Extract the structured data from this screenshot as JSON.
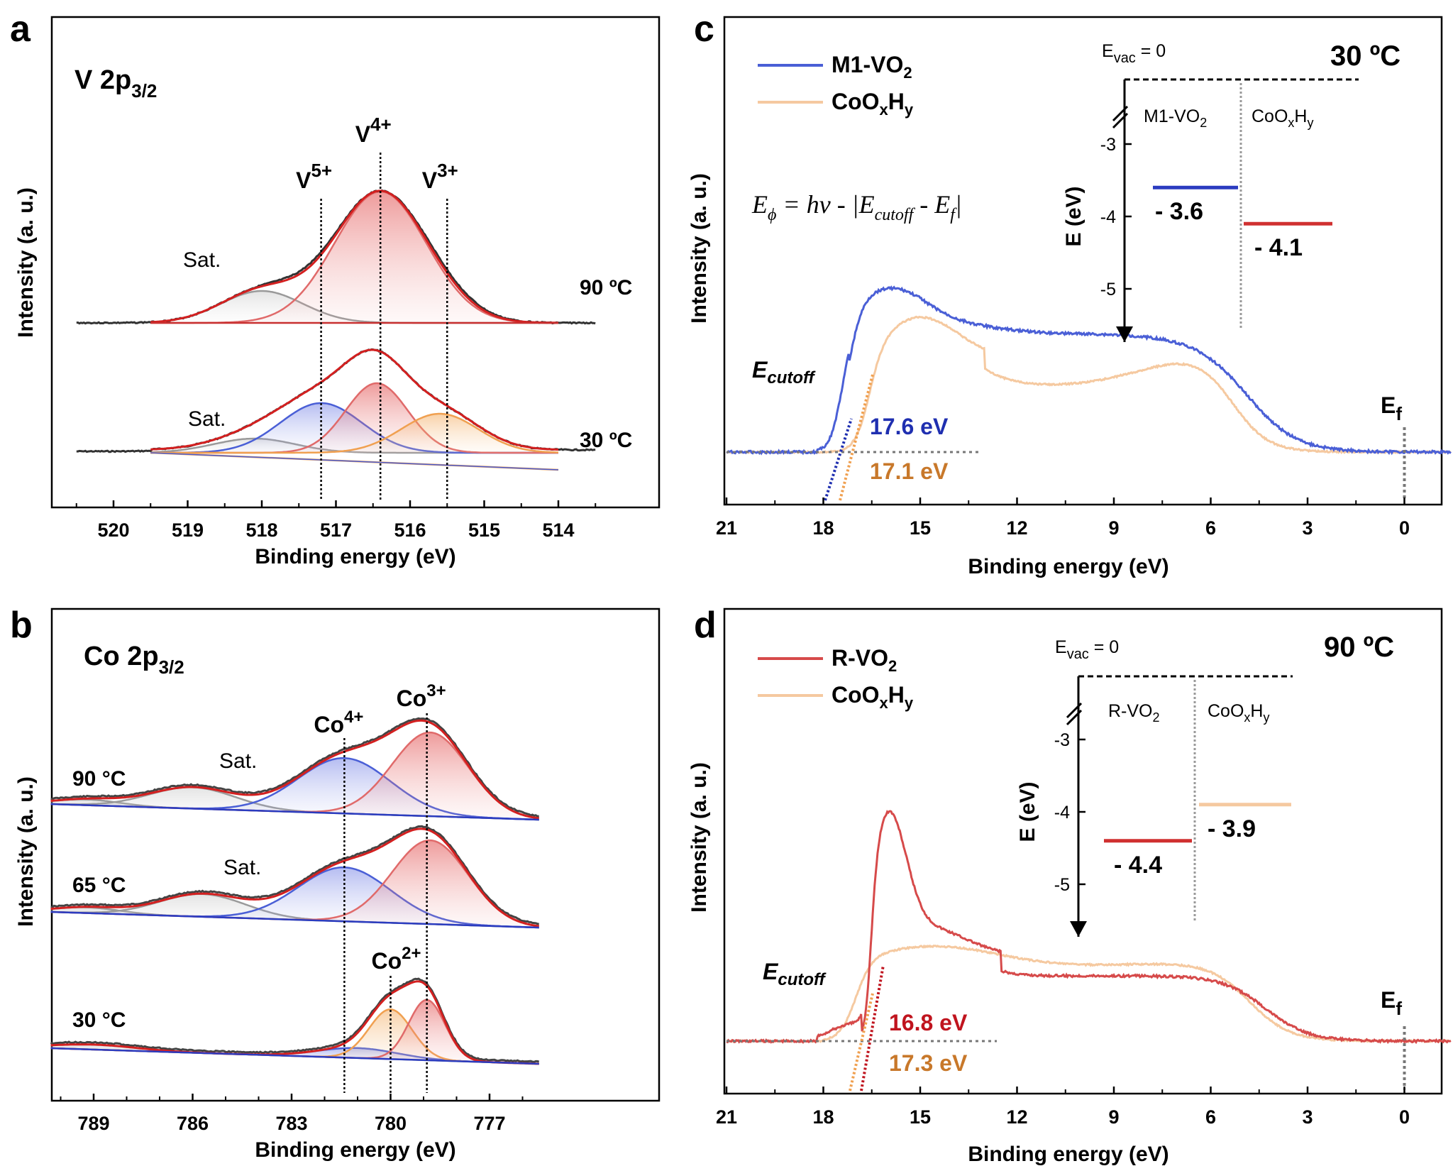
{
  "panels": {
    "a": {
      "label": "a",
      "title": "V 2p",
      "title_sub": "3/2",
      "ylabel": "Intensity (a. u.)",
      "xlabel": "Binding energy (eV)",
      "xticks": [
        "520",
        "519",
        "518",
        "517",
        "516",
        "515",
        "514"
      ],
      "peaks": [
        {
          "name": "V",
          "sup": "5+",
          "x": 517.2
        },
        {
          "name": "V",
          "sup": "4+",
          "x": 516.4
        },
        {
          "name": "V",
          "sup": "3+",
          "x": 515.5
        }
      ],
      "sat_upper": "Sat.",
      "sat_lower": "Sat.",
      "temp_upper": "90 ºC",
      "temp_lower": "30 ºC"
    },
    "b": {
      "label": "b",
      "title": "Co 2p",
      "title_sub": "3/2",
      "ylabel": "Intensity (a. u.)",
      "xlabel": "Binding energy (eV)",
      "xticks": [
        "789",
        "786",
        "783",
        "780",
        "777"
      ],
      "peaks": [
        {
          "name": "Co",
          "sup": "4+",
          "x": 781.4
        },
        {
          "name": "Co",
          "sup": "3+",
          "x": 778.9
        },
        {
          "name": "Co",
          "sup": "2+",
          "x": 780.0
        }
      ],
      "sat_1": "Sat.",
      "sat_2": "Sat.",
      "temp_1": "90 °C",
      "temp_2": "65 °C",
      "temp_3": "30 °C"
    },
    "c": {
      "label": "c",
      "ylabel": "Intensity (a. u.)",
      "xlabel": "Binding energy (eV)",
      "xticks": [
        "21",
        "18",
        "15",
        "12",
        "9",
        "6",
        "3",
        "0"
      ],
      "legend": [
        {
          "main": "M1-VO",
          "sub": "2",
          "color": "#4a5fd6"
        },
        {
          "main": "CoO",
          "sub": "x",
          "main2": "H",
          "sub2": "y",
          "color": "#f5c9a0"
        }
      ],
      "temperature": "30 ºC",
      "equation": {
        "lhs": "E",
        "lhs_sub": "ϕ",
        "mid": " = hν - |E",
        "mid_sub": "cutoff",
        "tail": " - E",
        "tail_sub": "f",
        "end": "|"
      },
      "cutoff_label": "E",
      "cutoff_sub": "cutoff",
      "cutoff_values": [
        {
          "text": "17.6 eV",
          "color": "#1f2fb0"
        },
        {
          "text": "17.1 eV",
          "color": "#c8782a"
        }
      ],
      "ef_label": "E",
      "ef_sub": "f",
      "inset": {
        "evac": "E",
        "evac_sub": "vac",
        "evac_tail": " = 0",
        "ylabel": "E (eV)",
        "yticks": [
          "-3",
          "-4",
          "-5"
        ],
        "col1": "M1-VO",
        "col1_sub": "2",
        "col2": "CoO",
        "col2_sub": "x",
        "col2b": "H",
        "col2b_sub": "y",
        "val1": "- 3.6",
        "val2": "- 4.1"
      }
    },
    "d": {
      "label": "d",
      "ylabel": "Intensity (a. u.)",
      "xlabel": "Binding energy (eV)",
      "xticks": [
        "21",
        "18",
        "15",
        "12",
        "9",
        "6",
        "3",
        "0"
      ],
      "legend": [
        {
          "main": "R-VO",
          "sub": "2",
          "color": "#d64a4a"
        },
        {
          "main": "CoO",
          "sub": "x",
          "main2": "H",
          "sub2": "y",
          "color": "#f5c9a0"
        }
      ],
      "temperature": "90 ºC",
      "cutoff_label": "E",
      "cutoff_sub": "cutoff",
      "cutoff_values": [
        {
          "text": "16.8 eV",
          "color": "#c0141e"
        },
        {
          "text": "17.3 eV",
          "color": "#c8782a"
        }
      ],
      "ef_label": "E",
      "ef_sub": "f",
      "inset": {
        "evac": "E",
        "evac_sub": "vac",
        "evac_tail": " = 0",
        "ylabel": "E (eV)",
        "yticks": [
          "-3",
          "-4",
          "-5"
        ],
        "col1": "R-VO",
        "col1_sub": "2",
        "col2": "CoO",
        "col2_sub": "x",
        "col2b": "H",
        "col2b_sub": "y",
        "val1": "- 4.4",
        "val2": "- 3.9"
      }
    }
  },
  "chart_data": [
    {
      "panel": "a",
      "type": "line",
      "xlabel": "Binding energy (eV)",
      "ylabel": "Intensity (a. u.)",
      "xlim": [
        520.5,
        513.5
      ],
      "peaks_eV": {
        "V5+": 517.2,
        "V4+": 516.4,
        "V3+": 515.5,
        "Sat.": 518.0
      },
      "series": [
        {
          "name": "90 ºC",
          "components": [
            "V4+",
            "V3+",
            "Sat."
          ]
        },
        {
          "name": "30 ºC",
          "components": [
            "V5+",
            "V4+",
            "V3+",
            "Sat."
          ]
        }
      ]
    },
    {
      "panel": "b",
      "type": "line",
      "xlabel": "Binding energy (eV)",
      "ylabel": "Intensity (a. u.)",
      "xlim": [
        790.3,
        775.5
      ],
      "peaks_eV": {
        "Co4+": 781.4,
        "Co3+": 778.9,
        "Co2+": 780.0,
        "Sat.": 786.0
      },
      "series": [
        {
          "name": "90 °C",
          "components": [
            "Co4+",
            "Co3+",
            "Sat."
          ]
        },
        {
          "name": "65 °C",
          "components": [
            "Co4+",
            "Co3+",
            "Sat."
          ]
        },
        {
          "name": "30 °C",
          "components": [
            "Co4+",
            "Co3+",
            "Co2+"
          ]
        }
      ]
    },
    {
      "panel": "c",
      "type": "line",
      "xlabel": "Binding energy (eV)",
      "ylabel": "Intensity (a. u.)",
      "xlim": [
        21,
        -1.5
      ],
      "series": [
        {
          "name": "M1-VO2",
          "cutoff_eV": 17.6
        },
        {
          "name": "CoOxHy",
          "cutoff_eV": 17.1
        }
      ],
      "energy_levels_eV": {
        "M1-VO2": -3.6,
        "CoOxHy": -4.1
      }
    },
    {
      "panel": "d",
      "type": "line",
      "xlabel": "Binding energy (eV)",
      "ylabel": "Intensity (a. u.)",
      "xlim": [
        21,
        -1.5
      ],
      "series": [
        {
          "name": "R-VO2",
          "cutoff_eV": 16.8
        },
        {
          "name": "CoOxHy",
          "cutoff_eV": 17.3
        }
      ],
      "energy_levels_eV": {
        "R-VO2": -4.4,
        "CoOxHy": -3.9
      }
    }
  ]
}
